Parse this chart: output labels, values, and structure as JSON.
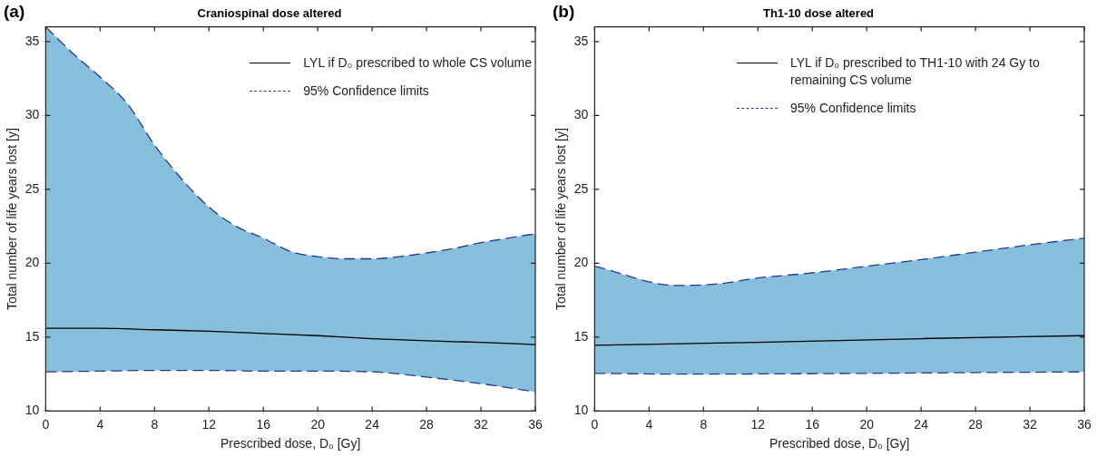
{
  "chart_data": [
    {
      "type": "line",
      "title": "Craniospinal dose altered",
      "xlabel": "Prescribed dose, D₀ [Gy]",
      "ylabel": "Total number of life years lost [y]",
      "annotations": [
        "(a)"
      ],
      "xlim": [
        0,
        36
      ],
      "xticks": [
        0,
        4,
        8,
        12,
        16,
        20,
        24,
        28,
        32,
        36
      ],
      "ylim": [
        10,
        36
      ],
      "yticks": [
        10,
        15,
        20,
        25,
        30,
        35
      ],
      "legend": "top right",
      "series": [
        {
          "name": "LYL if D₀ prescribed to whole CS volume",
          "color": "#000000",
          "line_style": "solid",
          "x": [
            0,
            4,
            8,
            12,
            16,
            20,
            24,
            28,
            32,
            36
          ],
          "values": [
            15.6,
            15.6,
            15.5,
            15.4,
            15.25,
            15.1,
            14.9,
            14.75,
            14.65,
            14.5
          ]
        },
        {
          "name": "95% Confidence limits",
          "type": "area",
          "color": "#2a3590",
          "line_style": "dashed",
          "x": [
            0,
            2,
            4,
            6,
            8,
            10,
            12,
            14,
            16,
            18,
            20,
            22,
            24,
            26,
            28,
            30,
            32,
            34,
            36
          ],
          "values": [
            36.0,
            34.2,
            32.6,
            30.8,
            28.0,
            25.7,
            23.8,
            22.5,
            21.7,
            20.8,
            20.45,
            20.3,
            20.3,
            20.45,
            20.7,
            21.0,
            21.4,
            21.7,
            22.0
          ]
        },
        {
          "type": "line",
          "color": "#2a3590",
          "line_style": "dashed",
          "x": [
            0,
            4,
            8,
            12,
            16,
            20,
            24,
            28,
            32,
            36
          ],
          "values": [
            12.65,
            12.7,
            12.75,
            12.75,
            12.7,
            12.7,
            12.65,
            12.3,
            11.85,
            11.3
          ]
        }
      ]
    },
    {
      "type": "line",
      "title": "Th1-10 dose altered",
      "xlabel": "Prescribed dose, D₀ [Gy]",
      "ylabel": "Total number of life years lost [y]",
      "annotations": [
        "(b)"
      ],
      "xlim": [
        0,
        36
      ],
      "xticks": [
        0,
        4,
        8,
        12,
        16,
        20,
        24,
        28,
        32,
        36
      ],
      "ylim": [
        10,
        36
      ],
      "yticks": [
        10,
        15,
        20,
        25,
        30,
        35
      ],
      "legend": "top right",
      "series": [
        {
          "name": "LYL if D₀ prescribed to TH1-10  with 24 Gy to remaining CS volume",
          "color": "#000000",
          "line_style": "solid",
          "x": [
            0,
            12,
            24,
            36
          ],
          "values": [
            14.45,
            14.65,
            14.9,
            15.1
          ]
        },
        {
          "name": "95% Confidence limits",
          "type": "area",
          "color": "#2a3590",
          "line_style": "dashed",
          "x": [
            0,
            6,
            9,
            12,
            16,
            20,
            24,
            28,
            32,
            36
          ],
          "values": [
            19.8,
            18.5,
            18.6,
            19.0,
            19.35,
            19.8,
            20.25,
            20.75,
            21.25,
            21.7
          ]
        },
        {
          "type": "line",
          "color": "#2a3590",
          "line_style": "dashed",
          "x": [
            0,
            6,
            36
          ],
          "values": [
            12.55,
            12.5,
            12.65
          ]
        }
      ]
    }
  ]
}
